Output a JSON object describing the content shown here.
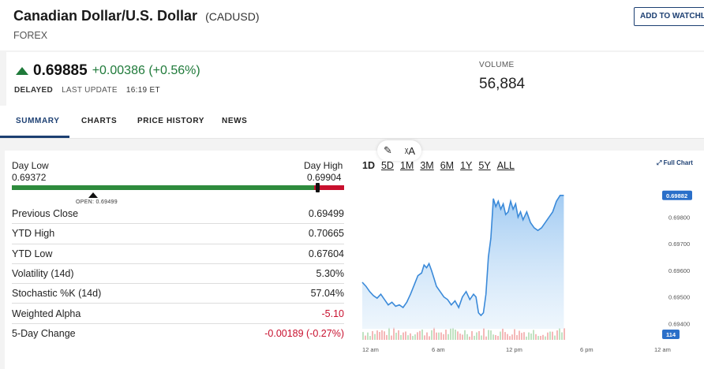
{
  "header": {
    "title": "Canadian Dollar/U.S. Dollar",
    "symbol": "(CADUSD)",
    "category": "FOREX",
    "watchlist_button": "ADD TO WATCHLIS"
  },
  "quote": {
    "price": "0.69885",
    "change": "+0.00386 (+0.56%)",
    "delayed": "DELAYED",
    "last_update_label": "LAST UPDATE",
    "last_update_time": "16:19 ET",
    "volume_label": "VOLUME",
    "volume_value": "56,884"
  },
  "tabs": [
    {
      "label": "SUMMARY"
    },
    {
      "label": "CHARTS"
    },
    {
      "label": "PRICE HISTORY"
    },
    {
      "label": "NEWS"
    }
  ],
  "day_range": {
    "low_label": "Day Low",
    "low_value": "0.69372",
    "high_label": "Day High",
    "high_value": "0.69904",
    "open_label": "OPEN: 0.69499"
  },
  "stats": [
    {
      "label": "Previous Close",
      "value": "0.69499"
    },
    {
      "label": "YTD High",
      "value": "0.70665"
    },
    {
      "label": "YTD Low",
      "value": "0.67604"
    },
    {
      "label": "Volatility (14d)",
      "value": "5.30%"
    },
    {
      "label": "Stochastic %K (14d)",
      "value": "57.04%"
    },
    {
      "label": "Weighted Alpha",
      "value": "-5.10"
    },
    {
      "label": "5-Day Change",
      "value": "-0.00189 (-0.27%)"
    }
  ],
  "chart_controls": {
    "ranges": [
      "1D",
      "5D",
      "1M",
      "3M",
      "6M",
      "1Y",
      "5Y",
      "ALL"
    ],
    "selected": "1D",
    "full_chart": "Full Chart",
    "icons": [
      "magic-wand-icon",
      "translate-icon"
    ]
  },
  "colors": {
    "accent": "#1c3f72",
    "up": "#1f7a3a",
    "down": "#c8102e",
    "line": "#3b8ad9"
  },
  "chart_data": {
    "type": "area",
    "x_ticks": [
      "12 am",
      "6 am",
      "12 pm",
      "6 pm",
      "12 am"
    ],
    "y_ticks": [
      "0.69800",
      "0.69700",
      "0.69600",
      "0.69500",
      "0.69400"
    ],
    "current_price_label": "0.69882",
    "volume_badge": "114",
    "ylim": [
      0.6938,
      0.6992
    ],
    "x": [
      0,
      0.3,
      0.6,
      0.9,
      1.2,
      1.5,
      1.8,
      2.1,
      2.4,
      2.7,
      3.0,
      3.3,
      3.6,
      3.9,
      4.2,
      4.5,
      4.8,
      5.0,
      5.2,
      5.4,
      5.6,
      5.8,
      6.0,
      6.3,
      6.6,
      6.9,
      7.2,
      7.5,
      7.8,
      8.1,
      8.4,
      8.7,
      9.0,
      9.2,
      9.4,
      9.6,
      9.8,
      10.0,
      10.2,
      10.4,
      10.6,
      10.8,
      11.0,
      11.2,
      11.4,
      11.6,
      11.8,
      12.0,
      12.2,
      12.4,
      12.6,
      12.8,
      13.0,
      13.3,
      13.6,
      13.9,
      14.2,
      14.5,
      14.8,
      15.1,
      15.4,
      15.7,
      16.0,
      16.3
    ],
    "y": [
      0.69555,
      0.6954,
      0.6952,
      0.69505,
      0.69495,
      0.6951,
      0.6949,
      0.6947,
      0.6948,
      0.69465,
      0.6947,
      0.6946,
      0.6948,
      0.6951,
      0.69545,
      0.6958,
      0.6959,
      0.6962,
      0.6961,
      0.69625,
      0.696,
      0.6957,
      0.6954,
      0.6952,
      0.695,
      0.6949,
      0.6947,
      0.69485,
      0.6946,
      0.695,
      0.6952,
      0.6949,
      0.6951,
      0.695,
      0.6944,
      0.6943,
      0.6944,
      0.6951,
      0.6965,
      0.6972,
      0.6987,
      0.6984,
      0.6986,
      0.6983,
      0.6985,
      0.6981,
      0.6982,
      0.6986,
      0.6983,
      0.6985,
      0.698,
      0.6982,
      0.6979,
      0.6982,
      0.6978,
      0.6976,
      0.6975,
      0.6976,
      0.6978,
      0.698,
      0.6982,
      0.6986,
      0.69882,
      0.69882
    ]
  }
}
